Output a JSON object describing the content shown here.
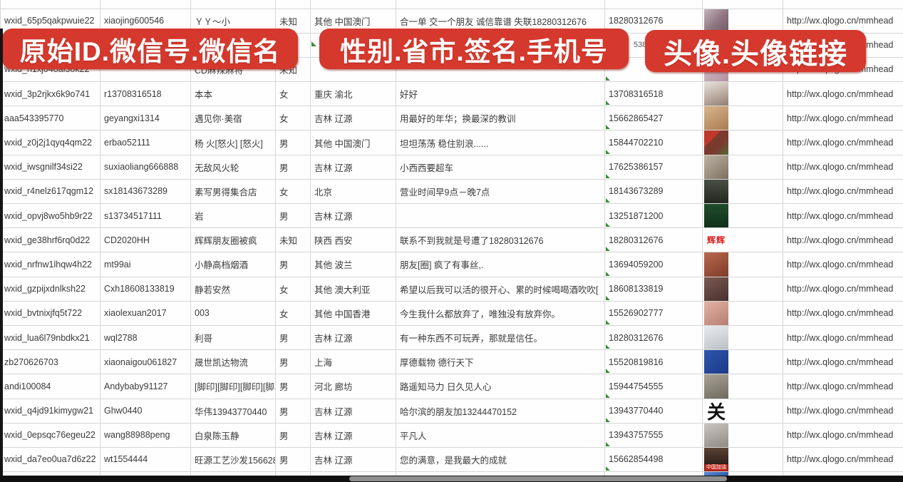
{
  "banners": [
    {
      "text": "原始ID.微信号.微信名"
    },
    {
      "text": "性别.省市.签名.手机号"
    },
    {
      "text": "头像.头像链接"
    }
  ],
  "accent_red": "#d5382c",
  "note_marker_green": "#3f8a3f",
  "bottom_partial_avatar_bg": "linear-gradient(135deg,#5b86cf,#2f5aa8)",
  "rows": [
    {
      "id": "wxid_65p5qakpwuie22",
      "wechat_no": "xiaojing600546",
      "name": "ＹＹ～小",
      "gender": "未知",
      "region": "其他 中国澳门",
      "signature": "合一单 交一个朋友 诚信靠谱 失联18280312676",
      "phone": "18280312676",
      "url": "http://wx.qlogo.cn/mmhead",
      "avatar": {
        "bg": "linear-gradient(135deg,#c6b4ba,#8d7580 55%,#6e5a66)"
      }
    },
    {
      "id": "",
      "wechat_no": "",
      "name": "",
      "gender": "",
      "region": "",
      "signature": "",
      "phone": "5386",
      "phone_style": "padding-left:40px;font-size:11px;color:#555;",
      "url": "http://wx.qlogo.cn/mmhead",
      "avatar": null,
      "no_note": true
    },
    {
      "id": "wxid_h1xj048al3ok22",
      "wechat_no": "",
      "name": "CD麻辣麻将",
      "gender": "未知",
      "region": "",
      "signature": "",
      "phone": "",
      "url": "http://wx.qlogo.cn/mmhead",
      "avatar": {
        "bg": "linear-gradient(135deg,#d8c2c8,#b391a0)"
      }
    },
    {
      "id": "wxid_3p2rjkx6k9o741",
      "wechat_no": "r13708316518",
      "name": "本本",
      "gender": "女",
      "region": "重庆 渝北",
      "signature": "好好",
      "phone": "13708316518",
      "url": "http://wx.qlogo.cn/mmhead",
      "avatar": {
        "bg": "linear-gradient(160deg,#e8e3de,#b7a79b 60%,#8f7d72)"
      }
    },
    {
      "id": "aaa543395770",
      "wechat_no": "geyangxi1314",
      "name": "遇见你·美宿",
      "gender": "女",
      "region": "吉林 辽源",
      "signature": "用最好的年华；换最深的教训",
      "phone": "15662865427",
      "url": "http://wx.qlogo.cn/mmhead",
      "avatar": {
        "bg": "linear-gradient(150deg,#d9b58c,#a97c52)"
      }
    },
    {
      "id": "wxid_z0j2j1qyq4qm22",
      "wechat_no": "erbao52111",
      "name": "杨 火[怒火] [怒火]",
      "gender": "男",
      "region": "其他 中国澳门",
      "signature": "坦坦荡荡 稳住别浪......",
      "phone": "15844702210",
      "url": "http://wx.qlogo.cn/mmhead",
      "avatar": {
        "bg": "linear-gradient(135deg,#c0392b 0 35%,#7a3b2e 35% 65%,#4e6b3a)"
      }
    },
    {
      "id": "wxid_iwsgnilf34si22",
      "wechat_no": "suxiaoliang666888",
      "name": "无敌风火轮",
      "gender": "男",
      "region": "吉林 辽源",
      "signature": "小西西要超车",
      "phone": "17625386157",
      "url": "http://wx.qlogo.cn/mmhead",
      "avatar": {
        "bg": "linear-gradient(140deg,#bdb3a4,#7d6f60)"
      }
    },
    {
      "id": "wxid_r4nelz617qgm12",
      "wechat_no": "sx18143673289",
      "name": "素写男得集合店",
      "gender": "女",
      "region": "北京",
      "signature": "营业时间早9点－晚7点",
      "phone": "18143673289",
      "url": "http://wx.qlogo.cn/mmhead",
      "avatar": {
        "bg": "linear-gradient(180deg,#4a4f45,#23271f)"
      }
    },
    {
      "id": "wxid_opvj8wo5hb9r22",
      "wechat_no": "s13734517111",
      "name": "岩",
      "gender": "男",
      "region": "吉林 辽源",
      "signature": "",
      "phone": "13251871200",
      "url": "http://wx.qlogo.cn/mmhead",
      "avatar": {
        "bg": "linear-gradient(180deg,#1f4d2a,#123019)"
      }
    },
    {
      "id": "wxid_ge38hrf6rq0d22",
      "wechat_no": "CD2020HH",
      "name": "辉辉朋友圈被疯",
      "gender": "未知",
      "region": "陕西 西安",
      "signature": "联系不到我就是号遭了18280312676",
      "phone": "18280312676",
      "url": "http://wx.qlogo.cn/mmhead",
      "avatar": {
        "bg": "#ffffff",
        "label": "辉辉",
        "label_style": "color:#e02020;font-weight:bold;font-size:12px;letter-spacing:1px;"
      }
    },
    {
      "id": "wxid_nrfnw1lhqw4h22",
      "wechat_no": "mt99ai",
      "name": "小静高档烟酒",
      "gender": "男",
      "region": "其他 波兰",
      "signature": "朋友[圈] 疯了有事丝,.",
      "phone": "13694059200",
      "url": "http://wx.qlogo.cn/mmhead",
      "avatar": {
        "bg": "linear-gradient(150deg,#b86a4e,#7e3b2a)"
      }
    },
    {
      "id": "wxid_gzpijxdnlksh22",
      "wechat_no": "Cxh18608133819",
      "name": "静若安然",
      "gender": "女",
      "region": "其他 澳大利亚",
      "signature": "希望以后我可以活的很开心、累的时候喝喝酒吹吹[",
      "phone": "18608133819",
      "url": "http://wx.qlogo.cn/mmhead",
      "avatar": {
        "bg": "linear-gradient(150deg,#7c5a52,#46302c)"
      }
    },
    {
      "id": "wxid_bvtnixjfq5t722",
      "wechat_no": "xiaolexuan2017",
      "name": "003",
      "gender": "女",
      "region": "其他 中国香港",
      "signature": "今生我什么都放弃了，唯独没有放弃你。",
      "phone": "15526902777",
      "url": "http://wx.qlogo.cn/mmhead",
      "avatar": {
        "bg": "linear-gradient(150deg,#e3b3a6,#b67e72)"
      }
    },
    {
      "id": "wxid_lua6l79nbdkx21",
      "wechat_no": "wql2788",
      "name": "利哥",
      "gender": "男",
      "region": "吉林 辽源",
      "signature": "有一种东西不可玩弄，那就是信任。",
      "phone": "18280312676",
      "url": "http://wx.qlogo.cn/mmhead",
      "avatar": {
        "bg": "linear-gradient(160deg,#e9ebee,#b9c0c6)"
      }
    },
    {
      "id": "zb270626703",
      "wechat_no": "xiaonaigou061827",
      "name": "晟世凯达物流",
      "gender": "男",
      "region": "上海",
      "signature": "厚德载物 德行天下",
      "phone": "15520819816",
      "url": "http://wx.qlogo.cn/mmhead",
      "avatar": {
        "bg": "linear-gradient(135deg,#2f55b0,#1c3a86)"
      }
    },
    {
      "id": "andi100084",
      "wechat_no": "Andybaby91127",
      "name": "[脚印][脚印][脚印][脚印",
      "gender": "男",
      "region": "河北 廊坊",
      "signature": "路遥知马力 日久见人心",
      "phone": "15944754555",
      "url": "http://wx.qlogo.cn/mmhead",
      "avatar": {
        "bg": "linear-gradient(160deg,#a9a295,#6f695e)"
      }
    },
    {
      "id": "wxid_q4jd91kimygw21",
      "wechat_no": "Ghw0440",
      "name": "华伟13943770440",
      "gender": "男",
      "region": "吉林 辽源",
      "signature": "哈尔滨的朋友加13244470152",
      "phone": "13943770440",
      "url": "http://wx.qlogo.cn/mmhead",
      "avatar": {
        "bg": "#ffffff",
        "label": "关",
        "label_style": "color:#111;font-size:26px;font-family:'DejaVu Serif',serif;font-weight:bold;"
      }
    },
    {
      "id": "wxid_0epsqc76egeu22",
      "wechat_no": "wang88988peng",
      "name": "白泉陈玉静",
      "gender": "男",
      "region": "吉林 辽源",
      "signature": "平凡人",
      "phone": "13943757555",
      "url": "http://wx.qlogo.cn/mmhead",
      "avatar": {
        "bg": "linear-gradient(160deg,#cac5bd,#8f8b84)"
      }
    },
    {
      "id": "wxid_da7eo0ua7d6z22",
      "wechat_no": "wt1554444",
      "name": "旺源工艺沙发15662854",
      "gender": "男",
      "region": "吉林 辽源",
      "signature": "您的满意，是我最大的成就",
      "phone": "15662854498",
      "url": "http://wx.qlogo.cn/mmhead",
      "avatar": {
        "bg": "linear-gradient(180deg,#5a4336,#2e2019 70%,#8a1f18)",
        "label": "中国加油",
        "label_style": "position:absolute;left:1px;right:1px;bottom:1px;background:#c3271d;color:#fff;font-size:7px;line-height:9px;text-align:center;"
      }
    }
  ]
}
